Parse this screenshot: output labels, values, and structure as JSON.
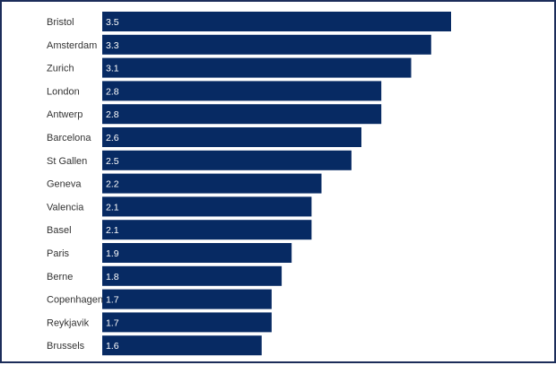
{
  "chart_data": {
    "type": "bar",
    "orientation": "horizontal",
    "title": "",
    "xlabel": "",
    "ylabel": "",
    "categories": [
      "Bristol",
      "Amsterdam",
      "Zurich",
      "London",
      "Antwerp",
      "Barcelona",
      "St Gallen",
      "Geneva",
      "Valencia",
      "Basel",
      "Paris",
      "Berne",
      "Copenhagen",
      "Reykjavik",
      "Brussels"
    ],
    "values": [
      3.5,
      3.3,
      3.1,
      2.8,
      2.8,
      2.6,
      2.5,
      2.2,
      2.1,
      2.1,
      1.9,
      1.8,
      1.7,
      1.7,
      1.6
    ],
    "value_labels": [
      "3.5",
      "3.3",
      "3.1",
      "2.8",
      "2.8",
      "2.6",
      "2.5",
      "2.2",
      "2.1",
      "2.1",
      "1.9",
      "1.8",
      "1.7",
      "1.7",
      "1.6"
    ],
    "xlim": [
      0,
      3.5
    ],
    "grid": false,
    "legend": "none",
    "bar_color": "#072a63",
    "frame_color": "#1c2d5a"
  }
}
